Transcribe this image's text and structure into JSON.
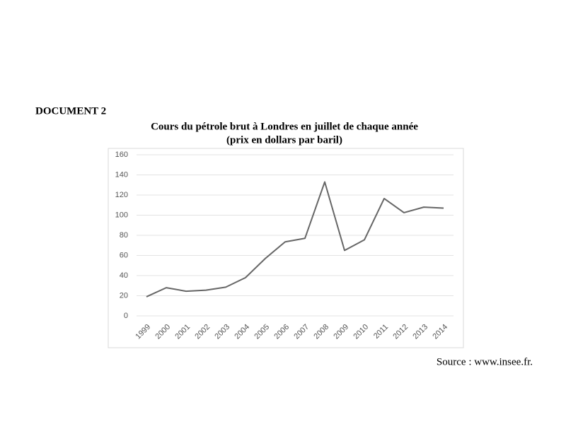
{
  "header": "DOCUMENT 2",
  "source": "Source : www.insee.fr.",
  "chart_data": {
    "type": "line",
    "title": "Cours du pétrole brut à Londres en juillet de chaque année",
    "subtitle": "(prix en dollars par baril)",
    "categories": [
      "1999",
      "2000",
      "2001",
      "2002",
      "2003",
      "2004",
      "2005",
      "2006",
      "2007",
      "2008",
      "2009",
      "2010",
      "2011",
      "2012",
      "2013",
      "2014"
    ],
    "values": [
      19,
      28,
      24.5,
      25.5,
      28.5,
      38,
      57,
      73.5,
      77,
      133,
      65,
      75.5,
      116.5,
      102.5,
      108,
      107
    ],
    "color": "#666666",
    "ylim": [
      0,
      160
    ],
    "yticks": [
      0,
      20,
      40,
      60,
      80,
      100,
      120,
      140,
      160
    ],
    "grid": true
  }
}
